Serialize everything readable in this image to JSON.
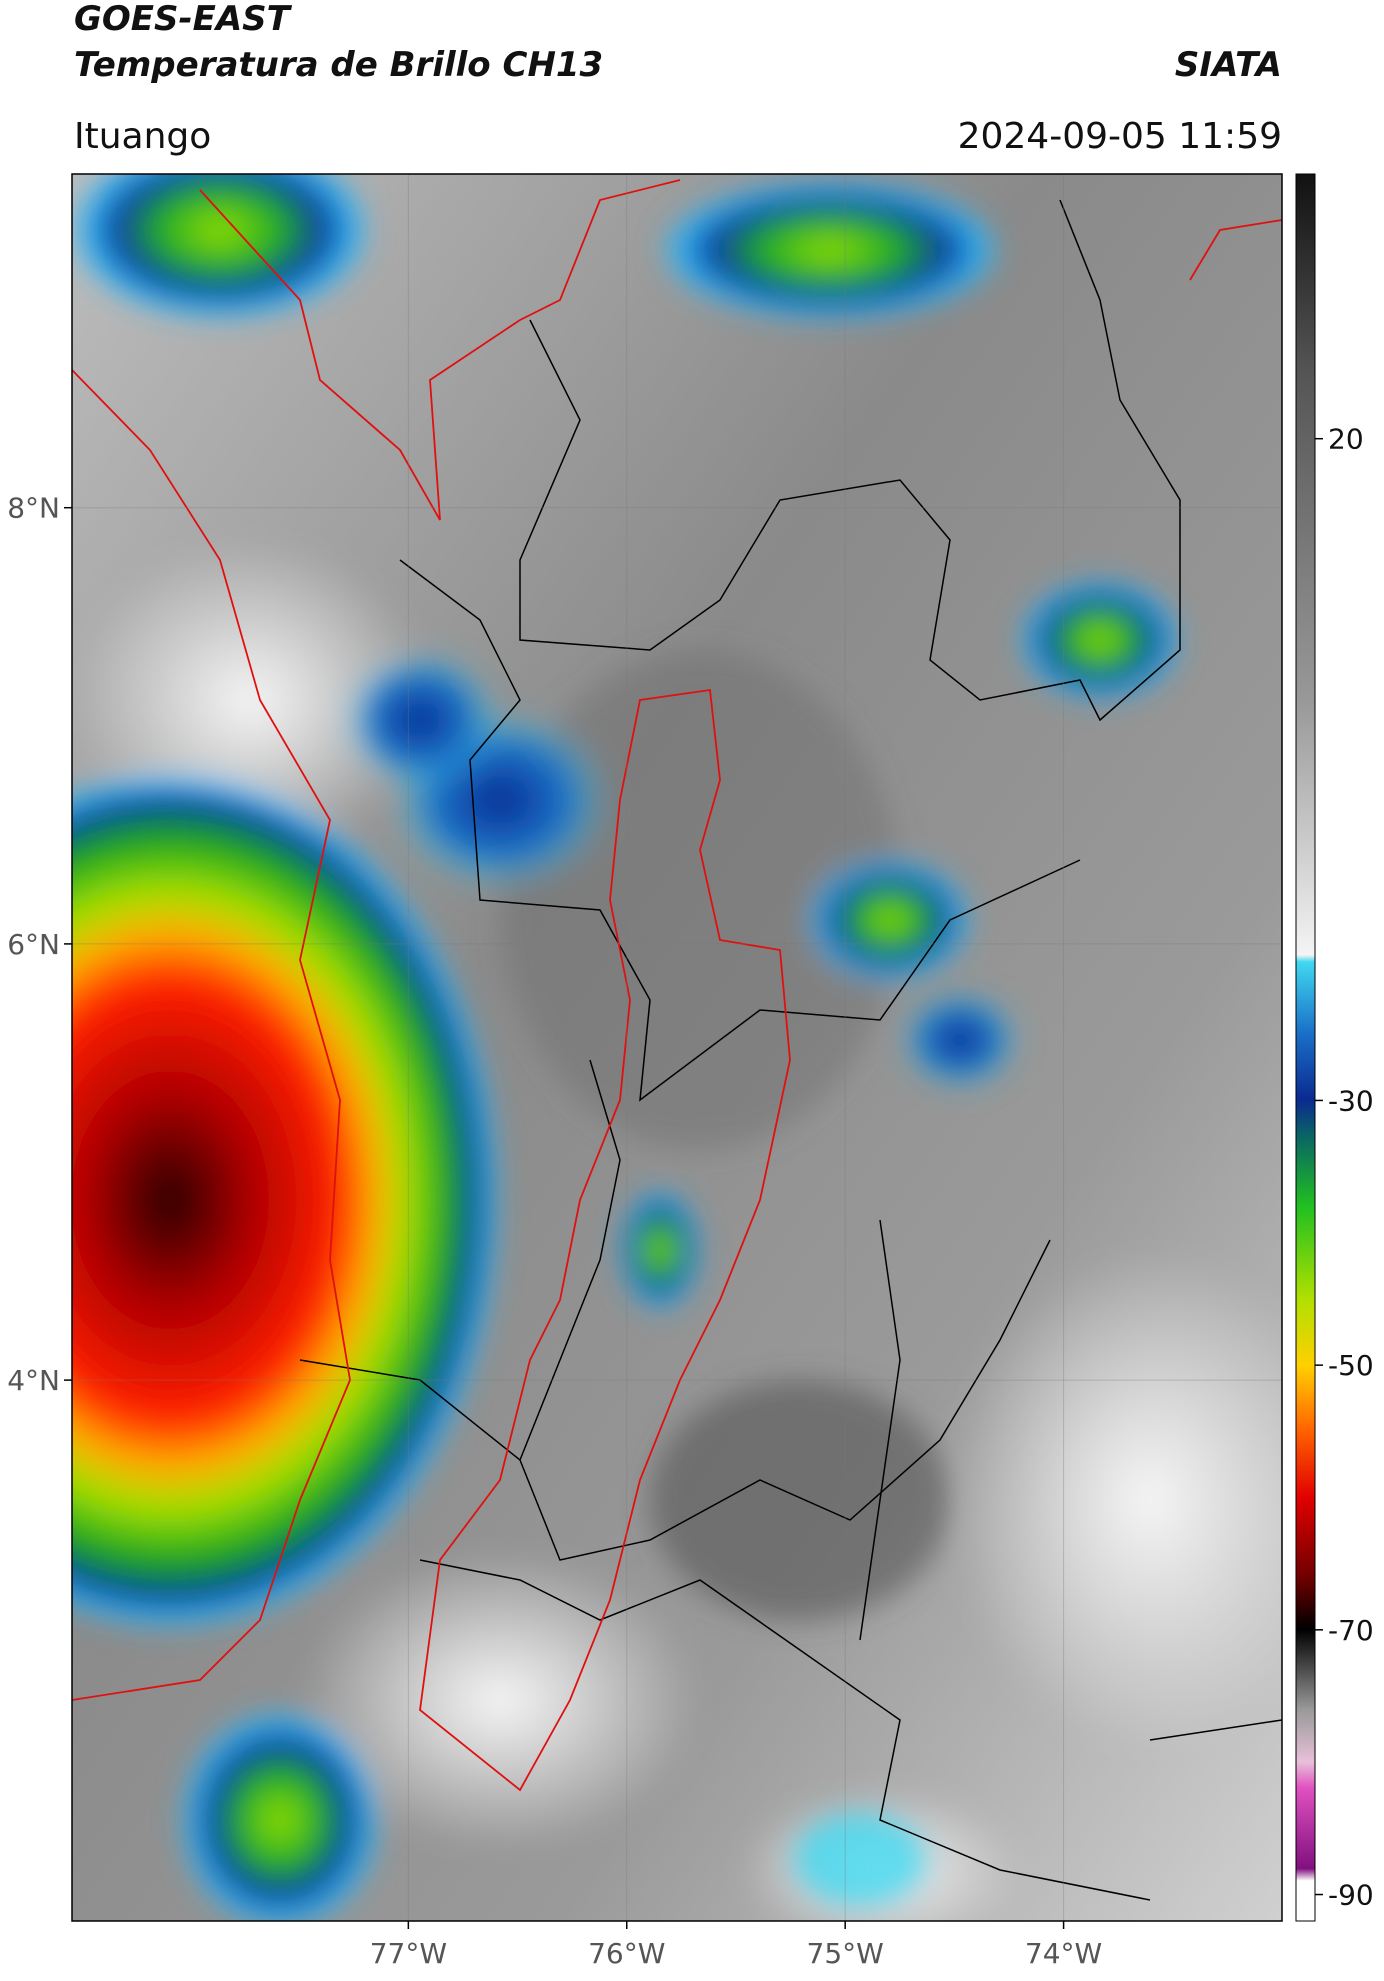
{
  "header": {
    "title": "GOES-EAST",
    "subtitle": "Temperatura de Brillo CH13",
    "source": "SIATA",
    "region": "Ituango",
    "datetime": "2024-09-05 11:59"
  },
  "map": {
    "lonlim": [
      -78.54,
      -73.0
    ],
    "latlim": [
      1.52,
      9.53
    ],
    "lat_ticks": [
      {
        "value": 8,
        "label": "8°N"
      },
      {
        "value": 6,
        "label": "6°N"
      },
      {
        "value": 4,
        "label": "4°N"
      }
    ],
    "lon_ticks": [
      {
        "value": -77,
        "label": "77°W"
      },
      {
        "value": -76,
        "label": "76°W"
      },
      {
        "value": -75,
        "label": "75°W"
      },
      {
        "value": -74,
        "label": "74°W"
      }
    ]
  },
  "colorbar": {
    "range": [
      -92,
      40
    ],
    "ticks": [
      20,
      -30,
      -50,
      -70,
      -90
    ]
  }
}
